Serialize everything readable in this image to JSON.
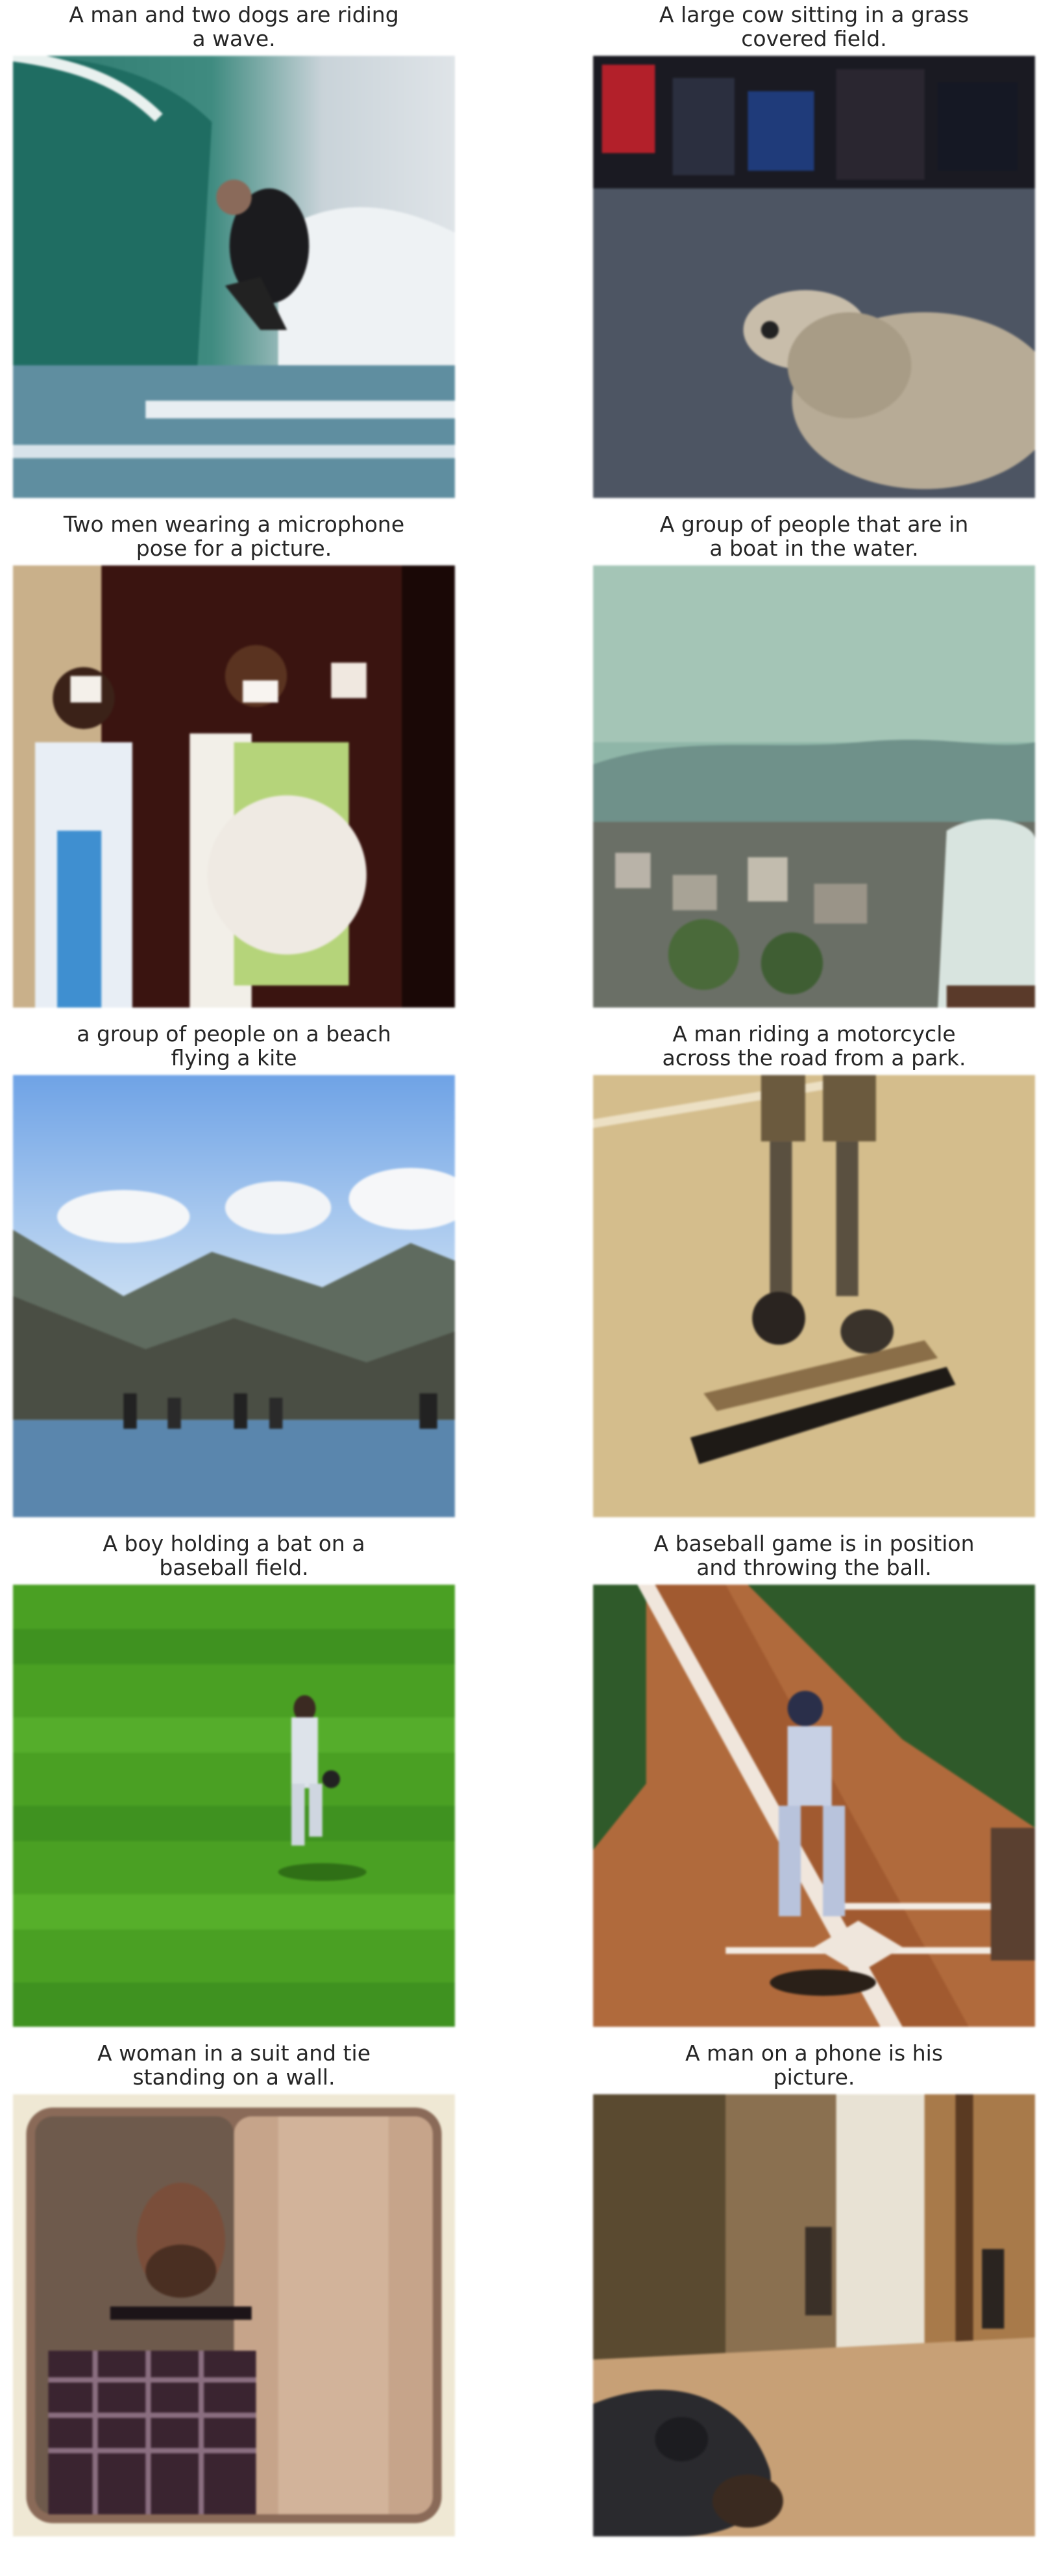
{
  "figure": {
    "cells": [
      {
        "caption": "A man and two dogs are riding\na wave.",
        "image": "surfer-riding-wave-photo"
      },
      {
        "caption": "A large cow sitting in a grass\ncovered field.",
        "image": "dog-lying-on-ground-photo"
      },
      {
        "caption": "Two men wearing  a microphone\npose for a picture.",
        "image": "two-people-taking-photos-photo"
      },
      {
        "caption": "A group of people that are in\na boat in the water.",
        "image": "foggy-town-landscape-photo"
      },
      {
        "caption": "a group of people on a beach\nflying a kite",
        "image": "mountain-lake-horses-photo"
      },
      {
        "caption": "A man riding a motorcycle\nacross the road from a park.",
        "image": "skateboarder-legs-photo"
      },
      {
        "caption": "A boy holding a bat on a\nbaseball field.",
        "image": "baseball-player-on-grass-photo"
      },
      {
        "caption": "A baseball game is in position\nand throwing the ball.",
        "image": "baseball-batter-at-plate-photo"
      },
      {
        "caption": "A woman in a suit and tie\nstanding on a wall.",
        "image": "man-in-plaid-shirt-photo"
      },
      {
        "caption": "A man on a phone is  his\npicture.",
        "image": "dog-on-street-photo"
      }
    ]
  }
}
